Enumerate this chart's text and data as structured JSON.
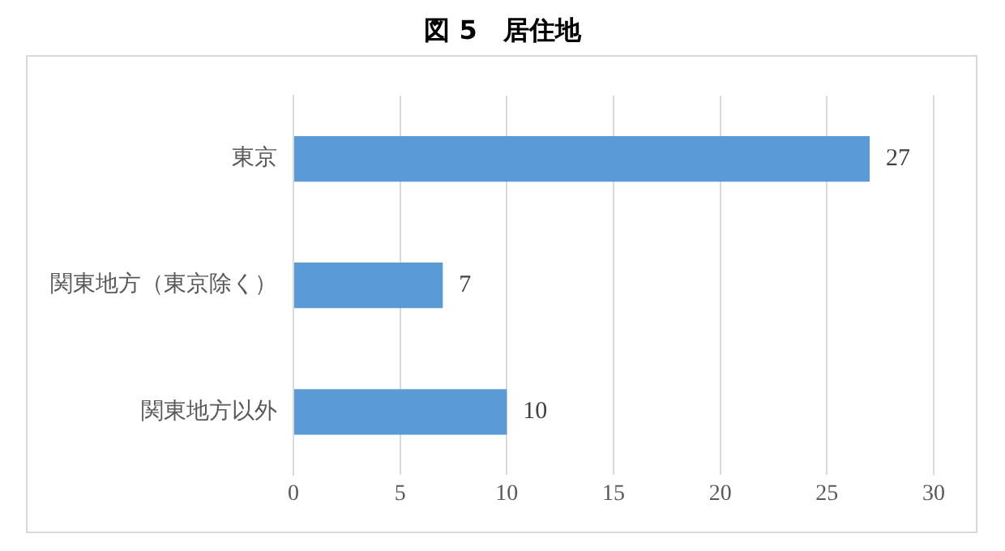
{
  "chart_data": {
    "type": "bar",
    "title": "図 5　居住地",
    "orientation": "horizontal",
    "categories": [
      "東京",
      "関東地方（東京除く）",
      "関東地方以外"
    ],
    "values": [
      27,
      7,
      10
    ],
    "color": "#5b9bd5",
    "xlim": [
      0,
      30
    ],
    "xticks": [
      0,
      5,
      10,
      15,
      20,
      25,
      30
    ],
    "grid": "x",
    "data_labels": true,
    "legend": false
  }
}
